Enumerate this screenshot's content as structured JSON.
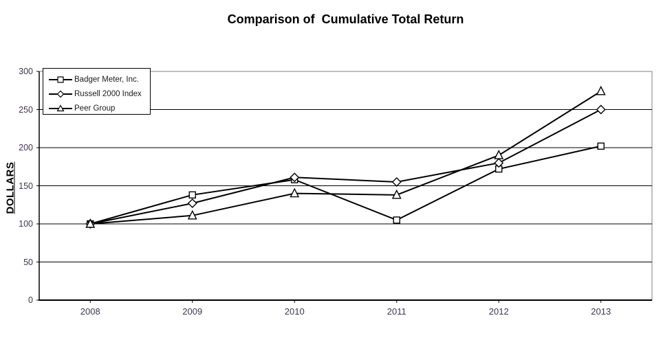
{
  "title": "Comparison of  Cumulative Total Return",
  "chart_data": {
    "type": "line",
    "categories": [
      "2008",
      "2009",
      "2010",
      "2011",
      "2012",
      "2013"
    ],
    "series": [
      {
        "name": "Badger Meter, Inc.",
        "marker": "square",
        "values": [
          100,
          138,
          158,
          105,
          172,
          202
        ]
      },
      {
        "name": "Russell 2000 Index",
        "marker": "diamond",
        "values": [
          100,
          127,
          161,
          155,
          180,
          250
        ]
      },
      {
        "name": "Peer Group",
        "marker": "triangle",
        "values": [
          100,
          111,
          140,
          138,
          190,
          274
        ]
      }
    ],
    "xlabel": "",
    "ylabel": "DOLLARS",
    "ylim": [
      0,
      300
    ],
    "yticks": [
      0,
      50,
      100,
      150,
      200,
      250,
      300
    ],
    "grid": "horizontal",
    "legend_position": "top-left-inside"
  },
  "colors": {
    "series_line": "#000000",
    "marker_fill": "#ffffff",
    "marker_stroke": "#000000",
    "gridline": "#000000",
    "axis_line": "#000000",
    "plot_border": "#7f7f7f",
    "tick_label": "#3d3450",
    "title_text": "#000000",
    "background": "#ffffff"
  }
}
